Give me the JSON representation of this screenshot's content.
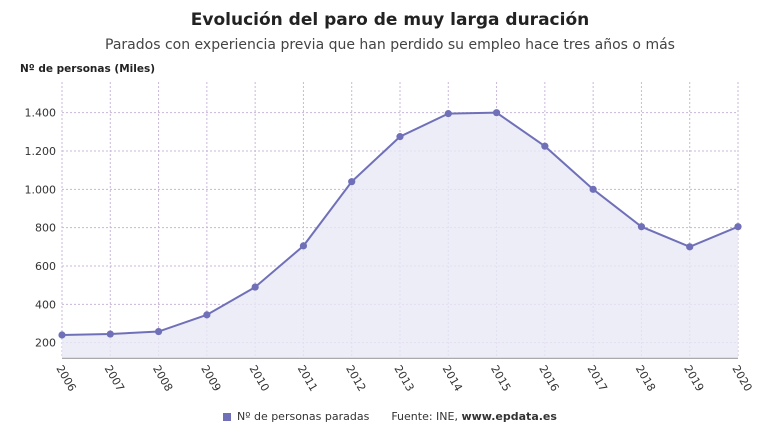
{
  "chart_data": {
    "type": "area",
    "title": "Evolución del paro de muy larga duración",
    "subtitle": "Parados con experiencia previa que han perdido su empleo hace tres años o más",
    "ylabel": "Nº de personas (Miles)",
    "x": [
      "2006",
      "2007",
      "2008",
      "2009",
      "2010",
      "2011",
      "2012",
      "2013",
      "2014",
      "2015",
      "2016",
      "2017",
      "2018",
      "2019",
      "2020"
    ],
    "series": [
      {
        "name": "Nº de personas paradas",
        "values": [
          240,
          245,
          258,
          345,
          490,
          705,
          1040,
          1275,
          1395,
          1400,
          1225,
          1000,
          805,
          700,
          805
        ]
      }
    ],
    "ylim": [
      120,
      1560
    ],
    "yticks": [
      200,
      400,
      600,
      800,
      1000,
      1200,
      1400
    ],
    "ytick_labels": [
      "200",
      "400",
      "600",
      "800",
      "1.000",
      "1.200",
      "1.400"
    ],
    "grid": true,
    "legend_position": "bottom",
    "colors": {
      "line": "#7070b8",
      "fill": "#e9e9f6",
      "grid": "#c8b8d8"
    }
  },
  "footer": {
    "source_prefix": "Fuente: INE, ",
    "source_site": "www.epdata.es"
  }
}
